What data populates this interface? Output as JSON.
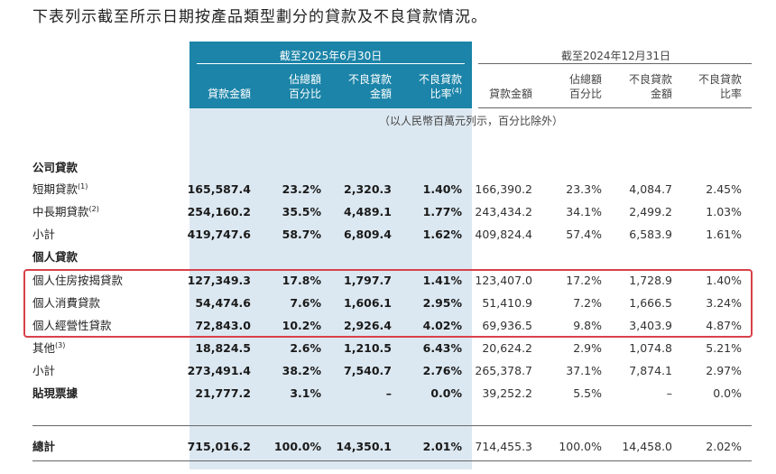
{
  "intro": "下表列示截至所示日期按產品類型劃分的貸款及不良貸款情況。",
  "periods": {
    "current": "截至2025年6月30日",
    "previous": "截至2024年12月31日"
  },
  "columns": [
    {
      "l1": "",
      "l2": "貸款金額"
    },
    {
      "l1": "佔總額",
      "l2": "百分比"
    },
    {
      "l1": "不良貸款",
      "l2": "金額"
    },
    {
      "l1": "不良貸款",
      "l2": "比率",
      "sup": "(4)"
    }
  ],
  "columns_prev": [
    {
      "l1": "",
      "l2": "貸款金額"
    },
    {
      "l1": "佔總額",
      "l2": "百分比"
    },
    {
      "l1": "不良貸款",
      "l2": "金額"
    },
    {
      "l1": "不良貸款",
      "l2": "比率"
    }
  ],
  "unit_note": "（以人民幣百萬元列示，百分比除外）",
  "rows": [
    {
      "label": "公司貸款",
      "section": true
    },
    {
      "label": "短期貸款",
      "sup": "(1)",
      "cur": [
        "165,587.4",
        "23.2%",
        "2,320.3",
        "1.40%"
      ],
      "prev": [
        "166,390.2",
        "23.3%",
        "4,084.7",
        "2.45%"
      ]
    },
    {
      "label": "中長期貸款",
      "sup": "(2)",
      "cur": [
        "254,160.2",
        "35.5%",
        "4,489.1",
        "1.77%"
      ],
      "prev": [
        "243,434.2",
        "34.1%",
        "2,499.2",
        "1.03%"
      ]
    },
    {
      "label": "小計",
      "cur": [
        "419,747.6",
        "58.7%",
        "6,809.4",
        "1.62%"
      ],
      "prev": [
        "409,824.4",
        "57.4%",
        "6,583.9",
        "1.61%"
      ]
    },
    {
      "label": "個人貸款",
      "section": true
    },
    {
      "label": "個人住房按揭貸款",
      "cur": [
        "127,349.3",
        "17.8%",
        "1,797.7",
        "1.41%"
      ],
      "prev": [
        "123,407.0",
        "17.2%",
        "1,728.9",
        "1.40%"
      ]
    },
    {
      "label": "個人消費貸款",
      "cur": [
        "54,474.6",
        "7.6%",
        "1,606.1",
        "2.95%"
      ],
      "prev": [
        "51,410.9",
        "7.2%",
        "1,666.5",
        "3.24%"
      ]
    },
    {
      "label": "個人經營性貸款",
      "cur": [
        "72,843.0",
        "10.2%",
        "2,926.4",
        "4.02%"
      ],
      "prev": [
        "69,936.5",
        "9.8%",
        "3,403.9",
        "4.87%"
      ]
    },
    {
      "label": "其他",
      "sup": "(3)",
      "cur": [
        "18,824.5",
        "2.6%",
        "1,210.5",
        "6.43%"
      ],
      "prev": [
        "20,624.2",
        "2.9%",
        "1,074.8",
        "5.21%"
      ]
    },
    {
      "label": "小計",
      "cur": [
        "273,491.4",
        "38.2%",
        "7,540.7",
        "2.76%"
      ],
      "prev": [
        "265,378.7",
        "37.1%",
        "7,874.1",
        "2.97%"
      ]
    },
    {
      "label": "貼現票據",
      "section": true,
      "cur": [
        "21,777.2",
        "3.1%",
        "–",
        "0.0%"
      ],
      "prev": [
        "39,252.2",
        "5.5%",
        "–",
        "0.0%"
      ]
    },
    {
      "label": "總計",
      "section": true,
      "cur": [
        "715,016.2",
        "100.0%",
        "14,350.1",
        "2.01%"
      ],
      "prev": [
        "714,455.3",
        "100.0%",
        "14,458.0",
        "2.02%"
      ]
    }
  ],
  "colors": {
    "header_blue": "#1b84a8",
    "highlight_fill": "#dce8f1",
    "annotation_red": "#d8414a"
  }
}
